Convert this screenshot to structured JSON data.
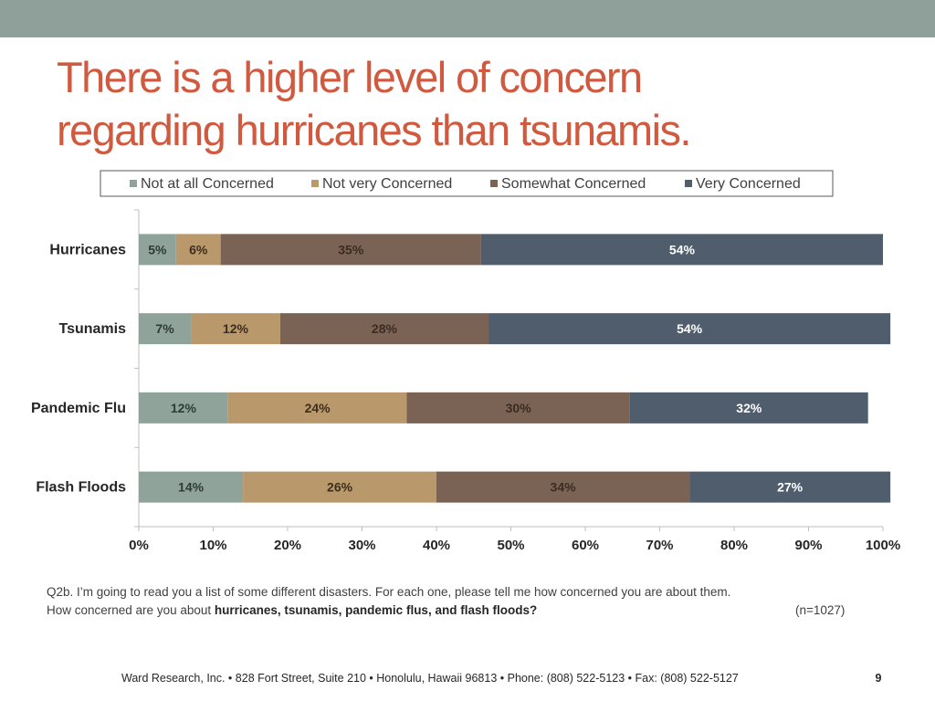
{
  "slide": {
    "title_line1": "There is a higher level of concern",
    "title_line2": "regarding hurricanes than tsunamis.",
    "footnote_line1": "Q2b. I’m going to read you a list of some different disasters.  For each one, please tell me how concerned you are about them.",
    "footnote_line2_prefix": "How concerned are you about ",
    "footnote_line2_bold": "hurricanes, tsunamis, pandemic flus, and flash floods?",
    "sample_size": "(n=1027)",
    "footer": "Ward Research, Inc. • 828 Fort Street, Suite 210 • Honolulu, Hawaii 96813 • Phone: (808) 522-5123 • Fax: (808) 522-5127",
    "page_number": "9"
  },
  "colors": {
    "top_bar": "#8fa09a",
    "title": "#d05a40"
  },
  "chart_data": {
    "type": "bar",
    "orientation": "horizontal",
    "stacked": true,
    "categories": [
      "Hurricanes",
      "Tsunamis",
      "Pandemic Flu",
      "Flash Floods"
    ],
    "series": [
      {
        "name": "Not at all Concerned",
        "color": "#8fa39b",
        "values": [
          5,
          7,
          12,
          14
        ],
        "labels": [
          "5%",
          "7%",
          "12%",
          "14%"
        ],
        "label_color": "#2f3a36"
      },
      {
        "name": "Not very Concerned",
        "color": "#b9986c",
        "values": [
          6,
          12,
          24,
          26
        ],
        "labels": [
          "6%",
          "12%",
          "24%",
          "26%"
        ],
        "label_color": "#3b2e1e"
      },
      {
        "name": "Somewhat Concerned",
        "color": "#7a6255",
        "values": [
          35,
          28,
          30,
          34
        ],
        "labels": [
          "35%",
          "28%",
          "30%",
          "34%"
        ],
        "label_color": "#3a2b23"
      },
      {
        "name": "Very Concerned",
        "color": "#4f5d6c",
        "values": [
          54,
          54,
          32,
          27
        ],
        "labels": [
          "54%",
          "54%",
          "32%",
          "27%"
        ],
        "label_color": "#ffffff"
      }
    ],
    "xlim": [
      0,
      100
    ],
    "x_ticks": [
      "0%",
      "10%",
      "20%",
      "30%",
      "40%",
      "50%",
      "60%",
      "70%",
      "80%",
      "90%",
      "100%"
    ],
    "legend_position": "top",
    "grid": false
  }
}
